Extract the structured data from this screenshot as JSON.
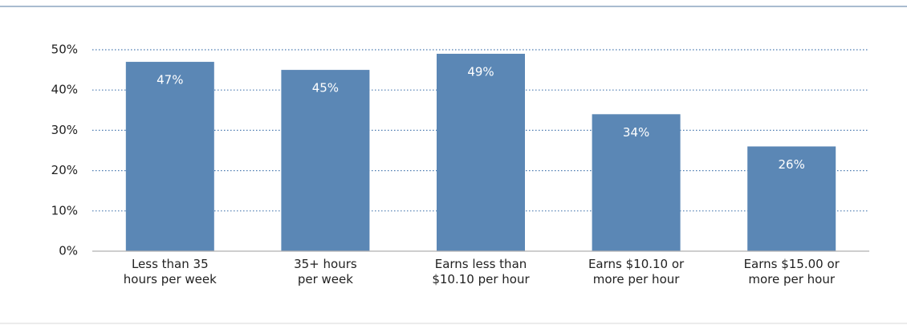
{
  "chart_data": {
    "type": "bar",
    "categories": [
      [
        "Less than 35",
        "hours per week"
      ],
      [
        "35+ hours",
        "per week"
      ],
      [
        "Earns less than",
        "$10.10 per hour"
      ],
      [
        "Earns $10.10 or",
        "more per hour"
      ],
      [
        "Earns $15.00 or",
        "more per hour"
      ]
    ],
    "values": [
      47,
      45,
      49,
      34,
      26
    ],
    "value_labels": [
      "47%",
      "45%",
      "49%",
      "34%",
      "26%"
    ],
    "color": "#5b87b5",
    "ylim": [
      0,
      50
    ],
    "yticks": [
      {
        "value": 0,
        "label": "0%"
      },
      {
        "value": 10,
        "label": "10%"
      },
      {
        "value": 20,
        "label": "20%"
      },
      {
        "value": 30,
        "label": "30%"
      },
      {
        "value": 40,
        "label": "40%"
      },
      {
        "value": 50,
        "label": "50%"
      }
    ],
    "grid": true
  }
}
